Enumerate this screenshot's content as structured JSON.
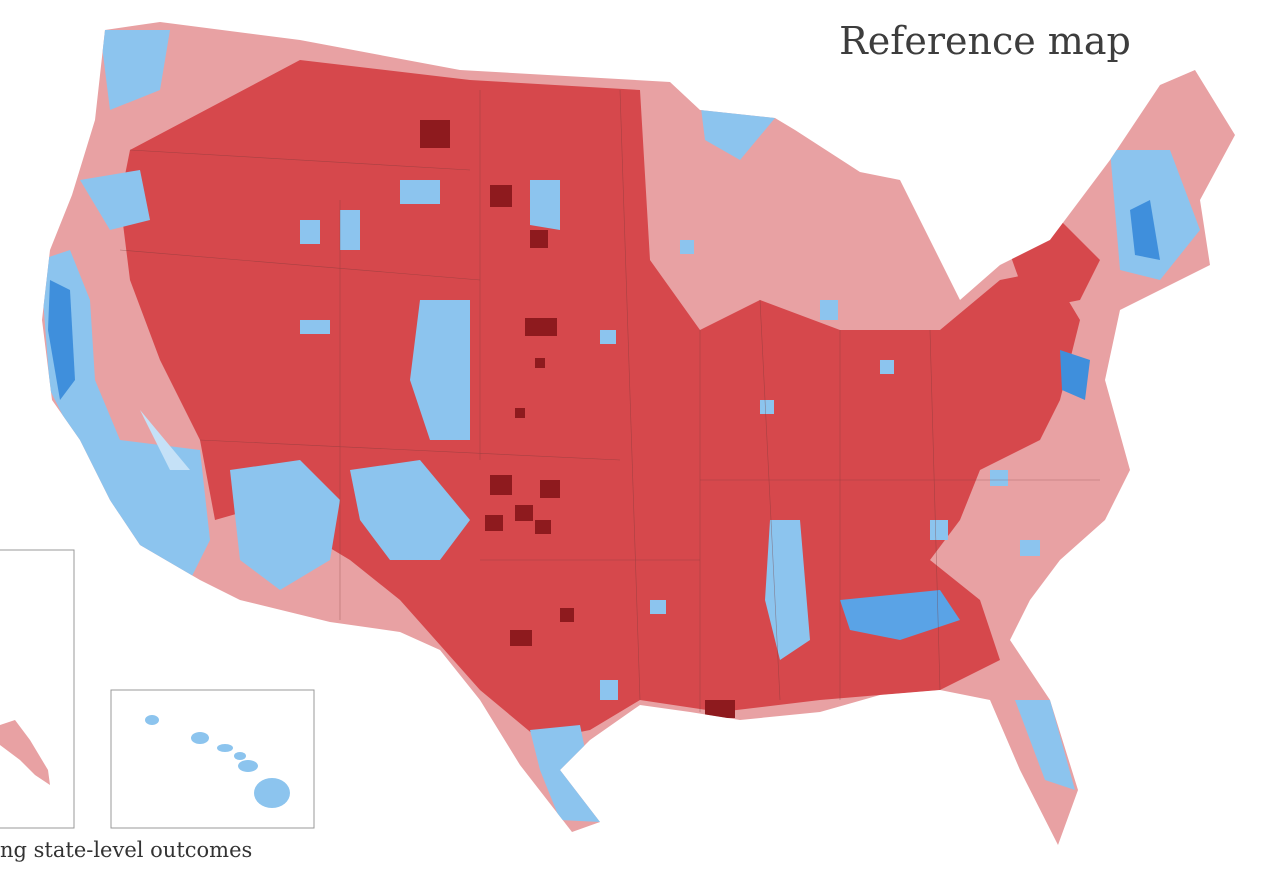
{
  "title": "Reference map",
  "footnote": "ng state-level outcomes"
}
